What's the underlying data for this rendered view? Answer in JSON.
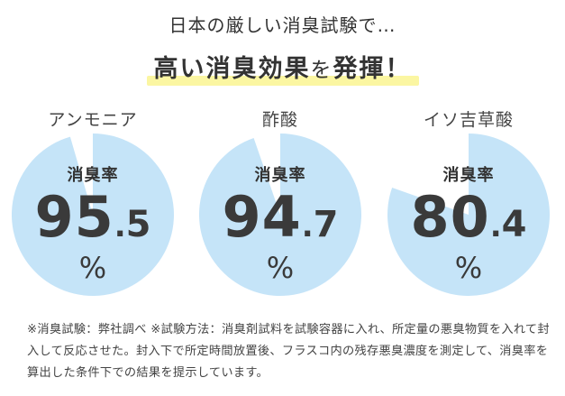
{
  "intro": "日本の厳しい消臭試験で…",
  "headline_main": "高い消臭効果",
  "headline_particle": "を",
  "headline_end": "発揮！",
  "gauge_label": "消臭率",
  "unit": "%",
  "colors": {
    "fill": "#c5e4f8",
    "background": "#ffffff",
    "text": "#3a3a3a",
    "highlight": "#fbf6a2"
  },
  "chart_data": {
    "type": "pie",
    "series": [
      {
        "name": "アンモニア",
        "value": 95.5,
        "int": "95",
        "dec": "5"
      },
      {
        "name": "酢酸",
        "value": 94.7,
        "int": "94",
        "dec": "7"
      },
      {
        "name": "イソ吉草酸",
        "value": 80.4,
        "int": "80",
        "dec": "4"
      }
    ]
  },
  "note": "※消臭試験：弊社調べ ※試験方法：消臭剤試料を試験容器に入れ、所定量の悪臭物質を入れて封入して反応させた。封入下で所定時間放置後、フラスコ内の残存悪臭濃度を測定して、消臭率を算出した条件下での結果を提示しています。"
}
